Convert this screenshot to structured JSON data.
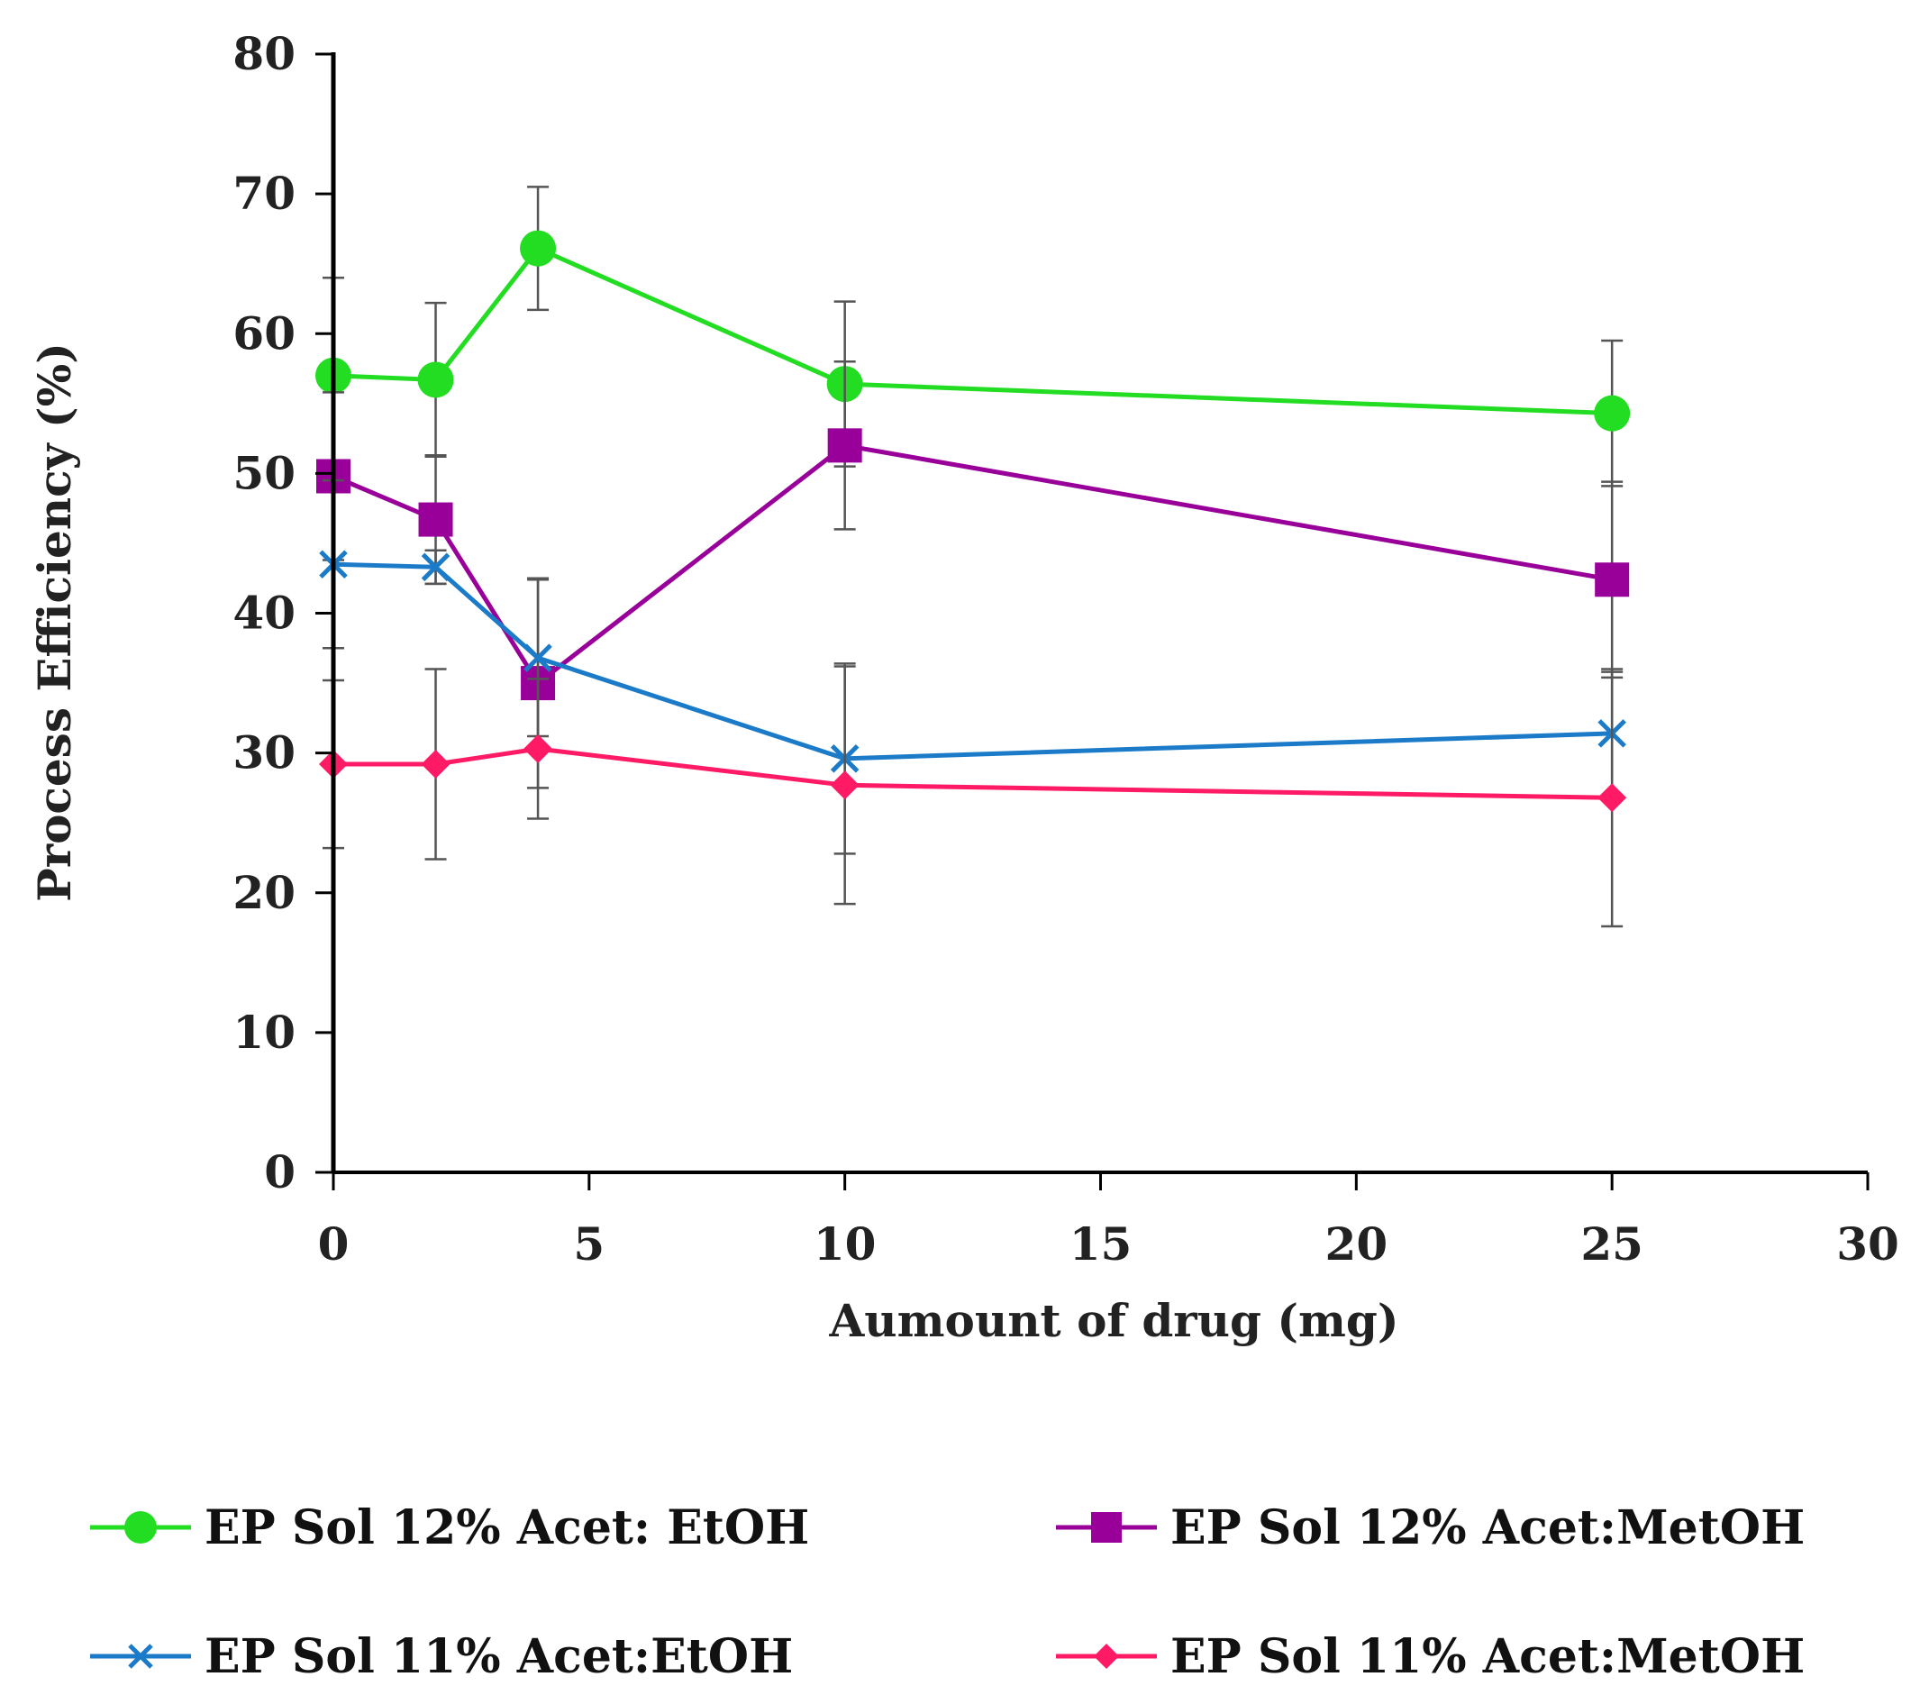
{
  "chart_data": {
    "type": "line",
    "xlabel": "Aumount of drug (mg)",
    "ylabel": "Process Efficiency (%)",
    "xlim": [
      0,
      30
    ],
    "ylim": [
      0,
      80
    ],
    "xticks": [
      0,
      5,
      10,
      15,
      20,
      25,
      30
    ],
    "yticks": [
      0,
      10,
      20,
      30,
      40,
      50,
      60,
      70,
      80
    ],
    "grid": false,
    "legend_position": "bottom",
    "x": [
      0,
      2,
      4,
      10,
      25
    ],
    "series": [
      {
        "name": "EP Sol 12% Acet: EtOH",
        "color": "#22dd22",
        "marker": "circle",
        "values": [
          57.0,
          56.7,
          66.1,
          56.4,
          54.3
        ],
        "error": [
          7.0,
          5.5,
          4.4,
          5.9,
          5.2
        ]
      },
      {
        "name": "EP Sol 12% Acet:MetOH",
        "color": "#990099",
        "marker": "square",
        "values": [
          49.8,
          46.7,
          35.0,
          52.0,
          42.4
        ],
        "error": [
          6.0,
          4.6,
          7.5,
          6.0,
          7.0
        ]
      },
      {
        "name": "EP Sol 11% Acet:EtOH",
        "color": "#1b7bc8",
        "marker": "x",
        "values": [
          43.5,
          43.3,
          36.8,
          29.6,
          31.4
        ],
        "error": [
          6.0,
          1.2,
          5.6,
          6.8,
          4.4
        ]
      },
      {
        "name": "EP Sol 11% Acet:MetOH",
        "color": "#ff1a66",
        "marker": "diamond",
        "values": [
          29.2,
          29.2,
          30.3,
          27.7,
          26.8
        ],
        "error": [
          6.0,
          6.8,
          5.0,
          8.5,
          9.2
        ]
      }
    ]
  }
}
